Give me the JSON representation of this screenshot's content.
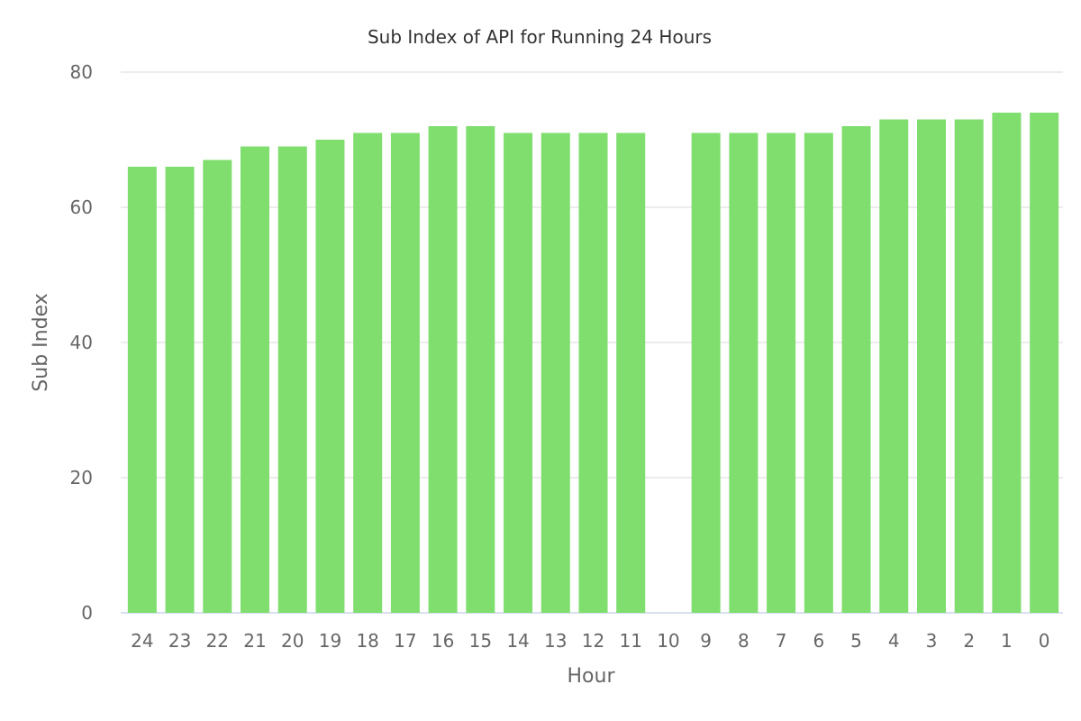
{
  "chart_data": {
    "type": "bar",
    "title": "Sub Index of API for Running 24 Hours",
    "xlabel": "Hour",
    "ylabel": "Sub Index",
    "categories": [
      "24",
      "23",
      "22",
      "21",
      "20",
      "19",
      "18",
      "17",
      "16",
      "15",
      "14",
      "13",
      "12",
      "11",
      "10",
      "9",
      "8",
      "7",
      "6",
      "5",
      "4",
      "3",
      "2",
      "1",
      "0"
    ],
    "series": [
      {
        "values": [
          66,
          66,
          67,
          69,
          69,
          70,
          71,
          71,
          72,
          72,
          71,
          71,
          71,
          71,
          null,
          71,
          71,
          71,
          71,
          72,
          73,
          73,
          73,
          74,
          74
        ]
      }
    ],
    "ylim": [
      0,
      80
    ],
    "yticks": [
      0,
      20,
      40,
      60,
      80
    ],
    "grid": true,
    "legend": "none",
    "colors": {
      "bar": "#7fde6e",
      "grid": "#e6e6e6",
      "baseline": "#ccd6eb"
    }
  }
}
